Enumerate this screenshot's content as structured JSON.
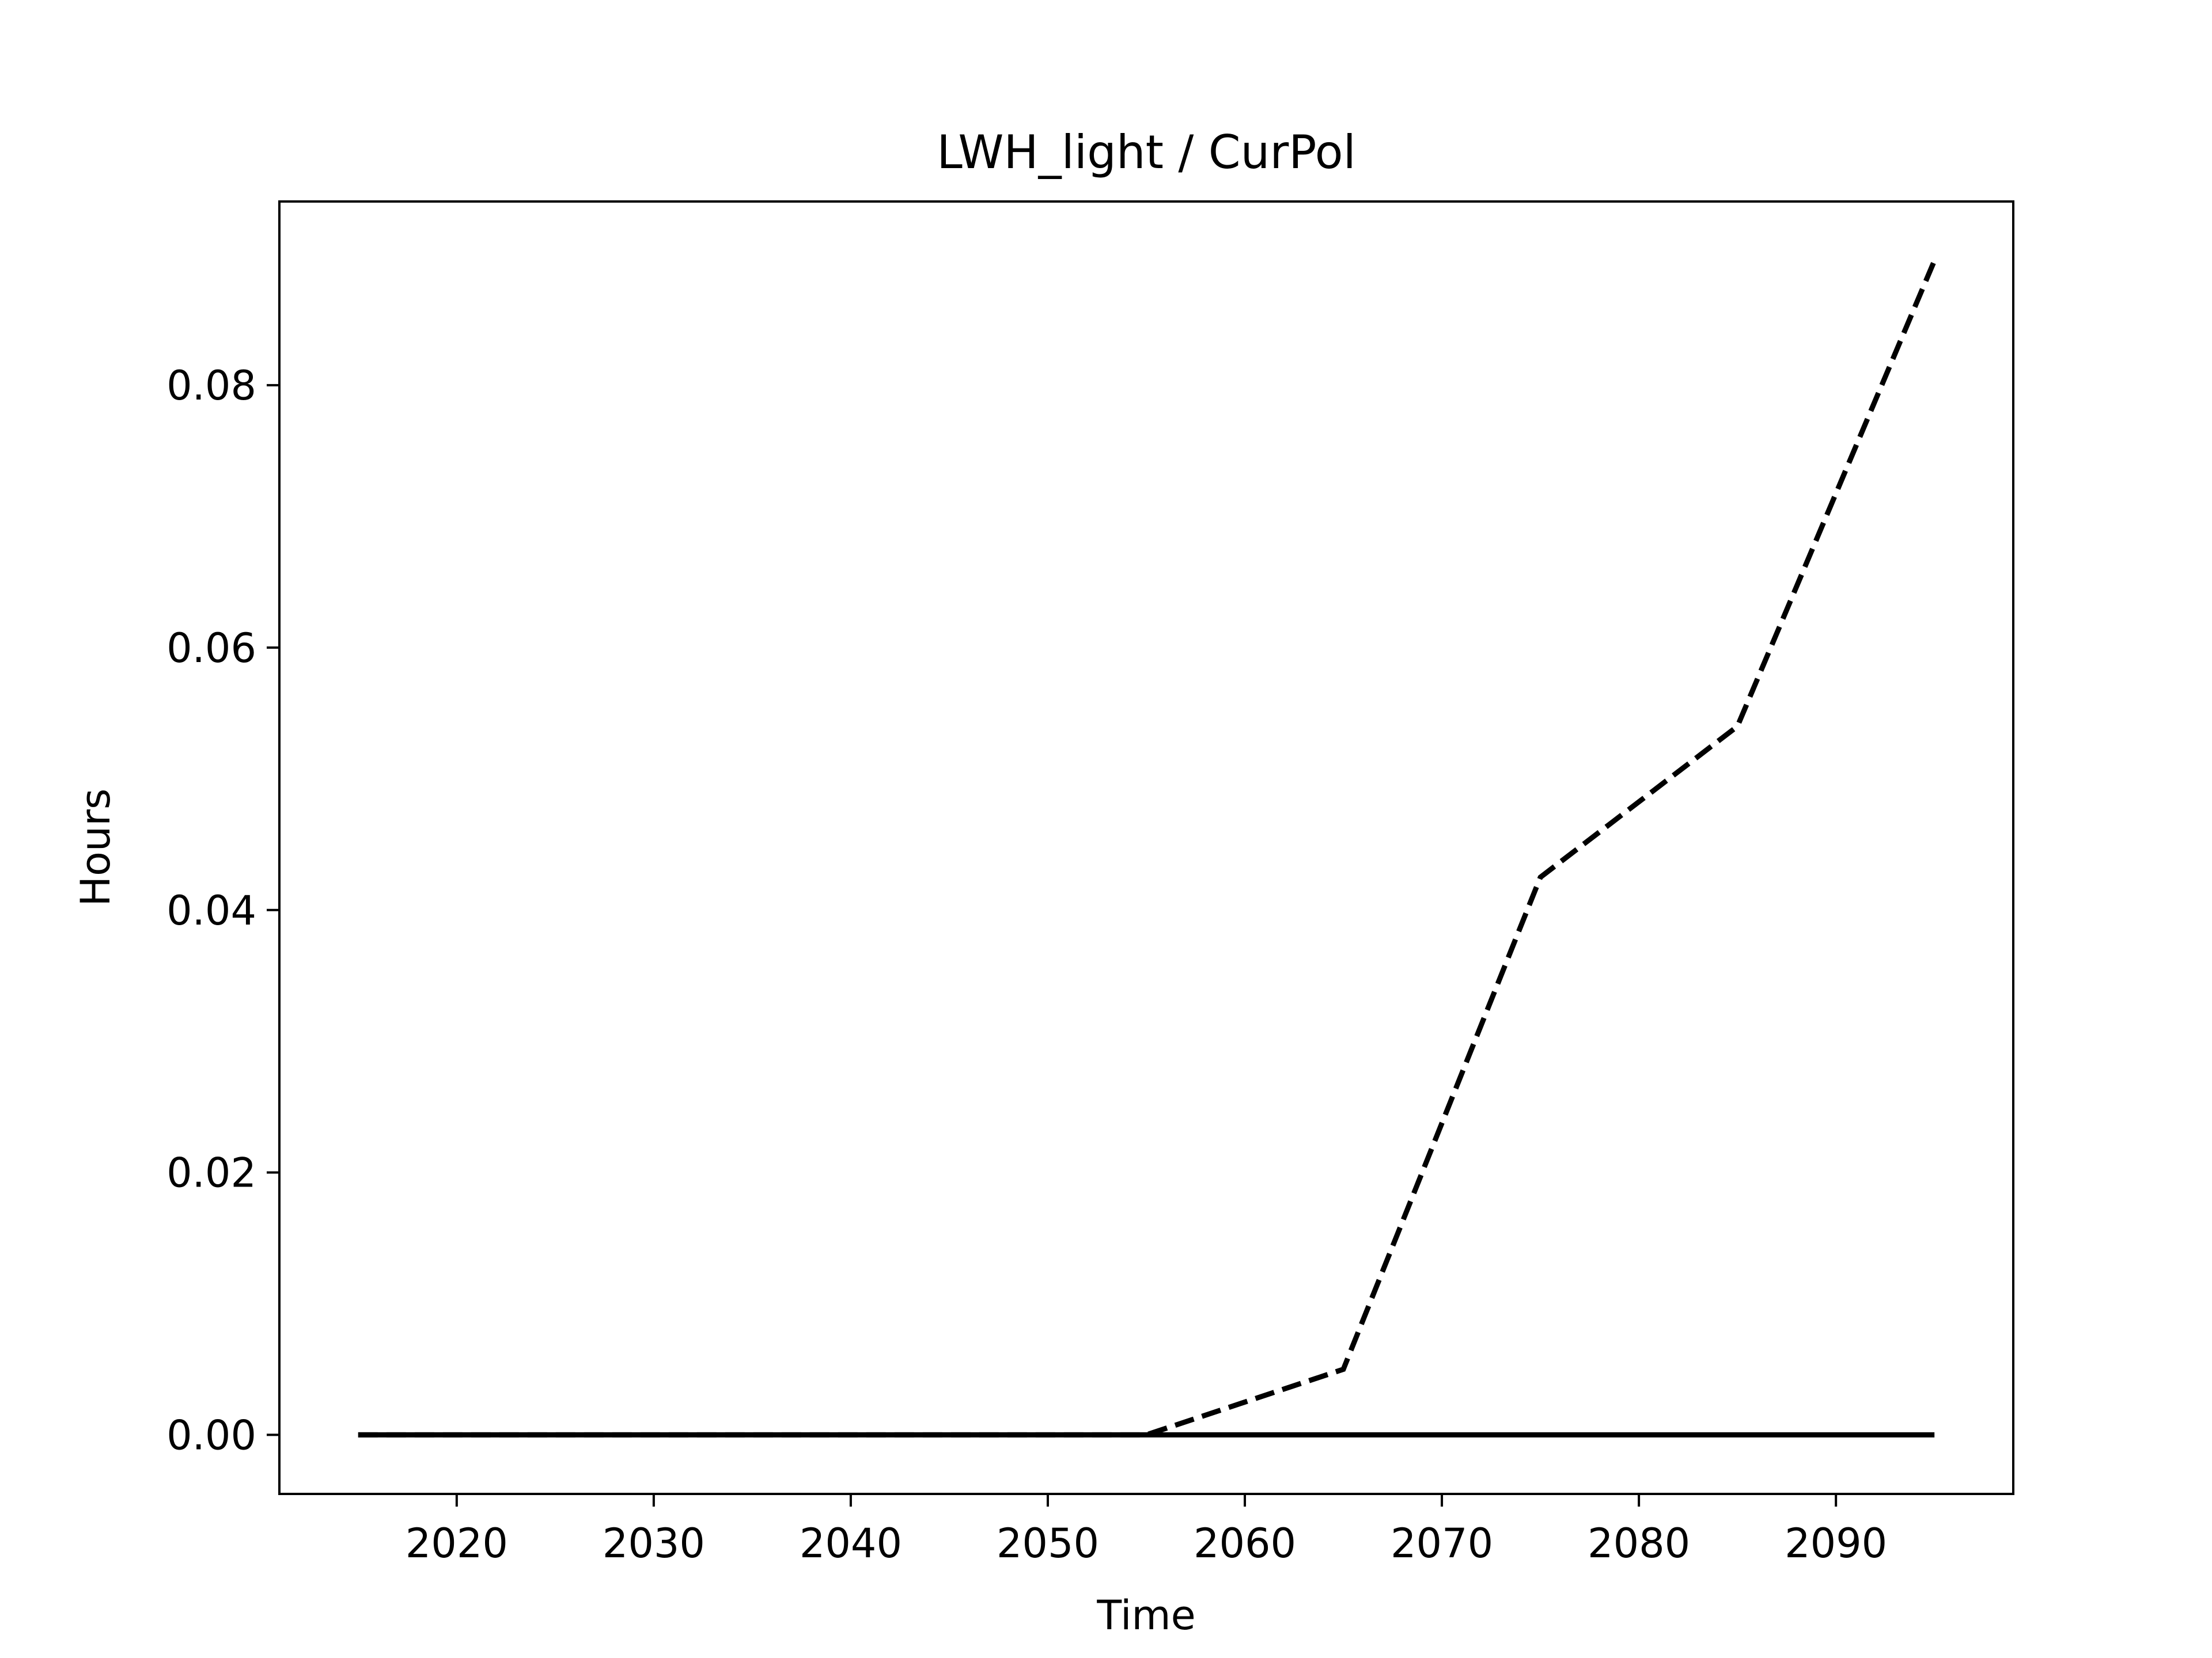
{
  "chart_data": {
    "type": "line",
    "title": "LWH_light / CurPol",
    "xlabel": "Time",
    "ylabel": "Hours",
    "xlim": [
      2011,
      2099
    ],
    "ylim": [
      -0.0045,
      0.094
    ],
    "xticks": [
      2020,
      2030,
      2040,
      2050,
      2060,
      2070,
      2080,
      2090
    ],
    "yticks": [
      0.0,
      0.02,
      0.04,
      0.06,
      0.08
    ],
    "ytick_labels": [
      "0.00",
      "0.02",
      "0.04",
      "0.06",
      "0.08"
    ],
    "grid": false,
    "x": [
      2015,
      2025,
      2035,
      2045,
      2055,
      2065,
      2075,
      2085,
      2095
    ],
    "series": [
      {
        "style": "solid",
        "color": "#000000",
        "values": [
          0,
          0,
          0,
          0,
          0,
          0,
          0,
          0,
          0
        ]
      },
      {
        "style": "dashed",
        "color": "#000000",
        "values": [
          0,
          0,
          0,
          0,
          0,
          0.005,
          0.0425,
          0.054,
          0.0895
        ]
      }
    ]
  }
}
